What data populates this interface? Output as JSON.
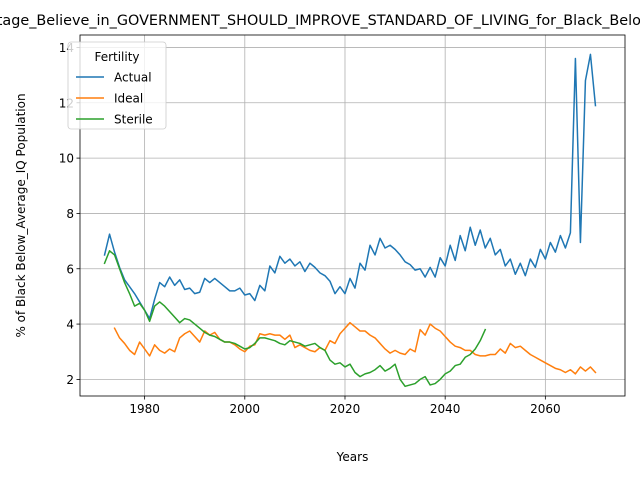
{
  "chart_data": {
    "type": "line",
    "title": "Percentage_Believe_in_GOVERNMENT_SHOULD_IMPROVE_STANDARD_OF_LIVING_for_Black_Below_Average_IQ",
    "xlabel": "Years",
    "ylabel": "% of Black Below_Average_IQ Population",
    "xlim": [
      1967.1,
      2075.9
    ],
    "ylim": [
      1.4,
      14.45
    ],
    "x_ticks": [
      1980,
      2000,
      2020,
      2040,
      2060
    ],
    "y_ticks": [
      2,
      4,
      6,
      8,
      10,
      12,
      14
    ],
    "x_tick_labels": [
      "1980",
      "2000",
      "2020",
      "2040",
      "2060"
    ],
    "y_tick_labels": [
      "2",
      "4",
      "6",
      "8",
      "10",
      "12",
      "14"
    ],
    "grid": true,
    "legend_title": "Fertility",
    "legend_position": "upper-left",
    "series": [
      {
        "name": "Actual",
        "color": "#1f77b4",
        "points": [
          [
            1972,
            6.5
          ],
          [
            1973,
            7.25
          ],
          [
            1974,
            6.6
          ],
          [
            1975,
            6.05
          ],
          [
            1976,
            5.6
          ],
          [
            1977,
            5.35
          ],
          [
            1978,
            5.1
          ],
          [
            1979,
            4.8
          ],
          [
            1980,
            4.5
          ],
          [
            1981,
            4.2
          ],
          [
            1982,
            4.9
          ],
          [
            1983,
            5.5
          ],
          [
            1984,
            5.35
          ],
          [
            1985,
            5.7
          ],
          [
            1986,
            5.4
          ],
          [
            1987,
            5.6
          ],
          [
            1988,
            5.25
          ],
          [
            1989,
            5.3
          ],
          [
            1990,
            5.1
          ],
          [
            1991,
            5.15
          ],
          [
            1992,
            5.65
          ],
          [
            1993,
            5.5
          ],
          [
            1994,
            5.65
          ],
          [
            1995,
            5.5
          ],
          [
            1996,
            5.35
          ],
          [
            1997,
            5.2
          ],
          [
            1998,
            5.2
          ],
          [
            1999,
            5.3
          ],
          [
            2000,
            5.05
          ],
          [
            2001,
            5.1
          ],
          [
            2002,
            4.85
          ],
          [
            2003,
            5.4
          ],
          [
            2004,
            5.2
          ],
          [
            2005,
            6.1
          ],
          [
            2006,
            5.85
          ],
          [
            2007,
            6.45
          ],
          [
            2008,
            6.2
          ],
          [
            2009,
            6.35
          ],
          [
            2010,
            6.1
          ],
          [
            2011,
            6.25
          ],
          [
            2012,
            5.9
          ],
          [
            2013,
            6.2
          ],
          [
            2014,
            6.05
          ],
          [
            2015,
            5.85
          ],
          [
            2016,
            5.75
          ],
          [
            2017,
            5.55
          ],
          [
            2018,
            5.1
          ],
          [
            2019,
            5.35
          ],
          [
            2020,
            5.1
          ],
          [
            2021,
            5.65
          ],
          [
            2022,
            5.3
          ],
          [
            2023,
            6.2
          ],
          [
            2024,
            5.95
          ],
          [
            2025,
            6.85
          ],
          [
            2026,
            6.5
          ],
          [
            2027,
            7.1
          ],
          [
            2028,
            6.75
          ],
          [
            2029,
            6.85
          ],
          [
            2030,
            6.7
          ],
          [
            2031,
            6.5
          ],
          [
            2032,
            6.25
          ],
          [
            2033,
            6.15
          ],
          [
            2034,
            5.95
          ],
          [
            2035,
            6.0
          ],
          [
            2036,
            5.7
          ],
          [
            2037,
            6.05
          ],
          [
            2038,
            5.7
          ],
          [
            2039,
            6.4
          ],
          [
            2040,
            6.1
          ],
          [
            2041,
            6.85
          ],
          [
            2042,
            6.3
          ],
          [
            2043,
            7.2
          ],
          [
            2044,
            6.65
          ],
          [
            2045,
            7.5
          ],
          [
            2046,
            6.85
          ],
          [
            2047,
            7.4
          ],
          [
            2048,
            6.75
          ],
          [
            2049,
            7.1
          ],
          [
            2050,
            6.5
          ],
          [
            2051,
            6.7
          ],
          [
            2052,
            6.1
          ],
          [
            2053,
            6.35
          ],
          [
            2054,
            5.8
          ],
          [
            2055,
            6.2
          ],
          [
            2056,
            5.75
          ],
          [
            2057,
            6.35
          ],
          [
            2058,
            6.05
          ],
          [
            2059,
            6.7
          ],
          [
            2060,
            6.35
          ],
          [
            2061,
            6.95
          ],
          [
            2062,
            6.6
          ],
          [
            2063,
            7.2
          ],
          [
            2064,
            6.75
          ],
          [
            2065,
            7.3
          ],
          [
            2066,
            13.6
          ],
          [
            2067,
            6.95
          ],
          [
            2068,
            12.8
          ],
          [
            2069,
            13.75
          ],
          [
            2070,
            11.9
          ]
        ]
      },
      {
        "name": "Ideal",
        "color": "#ff7f0e",
        "points": [
          [
            1974,
            3.85
          ],
          [
            1975,
            3.5
          ],
          [
            1976,
            3.3
          ],
          [
            1977,
            3.05
          ],
          [
            1978,
            2.9
          ],
          [
            1979,
            3.35
          ],
          [
            1980,
            3.1
          ],
          [
            1981,
            2.85
          ],
          [
            1982,
            3.25
          ],
          [
            1983,
            3.05
          ],
          [
            1984,
            2.95
          ],
          [
            1985,
            3.1
          ],
          [
            1986,
            3.0
          ],
          [
            1987,
            3.5
          ],
          [
            1988,
            3.65
          ],
          [
            1989,
            3.75
          ],
          [
            1990,
            3.55
          ],
          [
            1991,
            3.35
          ],
          [
            1992,
            3.75
          ],
          [
            1993,
            3.6
          ],
          [
            1994,
            3.7
          ],
          [
            1995,
            3.45
          ],
          [
            1996,
            3.35
          ],
          [
            1997,
            3.35
          ],
          [
            1998,
            3.25
          ],
          [
            1999,
            3.1
          ],
          [
            2000,
            3.0
          ],
          [
            2001,
            3.2
          ],
          [
            2002,
            3.25
          ],
          [
            2003,
            3.65
          ],
          [
            2004,
            3.6
          ],
          [
            2005,
            3.65
          ],
          [
            2006,
            3.6
          ],
          [
            2007,
            3.6
          ],
          [
            2008,
            3.45
          ],
          [
            2009,
            3.6
          ],
          [
            2010,
            3.15
          ],
          [
            2011,
            3.25
          ],
          [
            2012,
            3.15
          ],
          [
            2013,
            3.05
          ],
          [
            2014,
            3.0
          ],
          [
            2015,
            3.15
          ],
          [
            2016,
            3.05
          ],
          [
            2017,
            3.4
          ],
          [
            2018,
            3.3
          ],
          [
            2019,
            3.65
          ],
          [
            2020,
            3.85
          ],
          [
            2021,
            4.05
          ],
          [
            2022,
            3.9
          ],
          [
            2023,
            3.75
          ],
          [
            2024,
            3.75
          ],
          [
            2025,
            3.6
          ],
          [
            2026,
            3.5
          ],
          [
            2027,
            3.3
          ],
          [
            2028,
            3.1
          ],
          [
            2029,
            2.95
          ],
          [
            2030,
            3.05
          ],
          [
            2031,
            2.95
          ],
          [
            2032,
            2.9
          ],
          [
            2033,
            3.1
          ],
          [
            2034,
            3.0
          ],
          [
            2035,
            3.8
          ],
          [
            2036,
            3.6
          ],
          [
            2037,
            4.0
          ],
          [
            2038,
            3.85
          ],
          [
            2039,
            3.75
          ],
          [
            2040,
            3.55
          ],
          [
            2041,
            3.35
          ],
          [
            2042,
            3.2
          ],
          [
            2043,
            3.15
          ],
          [
            2044,
            3.05
          ],
          [
            2045,
            3.05
          ],
          [
            2046,
            2.9
          ],
          [
            2047,
            2.85
          ],
          [
            2048,
            2.85
          ],
          [
            2049,
            2.9
          ],
          [
            2050,
            2.9
          ],
          [
            2051,
            3.1
          ],
          [
            2052,
            2.95
          ],
          [
            2053,
            3.3
          ],
          [
            2054,
            3.15
          ],
          [
            2055,
            3.2
          ],
          [
            2056,
            3.05
          ],
          [
            2057,
            2.9
          ],
          [
            2058,
            2.8
          ],
          [
            2059,
            2.7
          ],
          [
            2060,
            2.6
          ],
          [
            2061,
            2.5
          ],
          [
            2062,
            2.4
          ],
          [
            2063,
            2.35
          ],
          [
            2064,
            2.25
          ],
          [
            2065,
            2.35
          ],
          [
            2066,
            2.2
          ],
          [
            2067,
            2.45
          ],
          [
            2068,
            2.3
          ],
          [
            2069,
            2.45
          ],
          [
            2070,
            2.25
          ]
        ]
      },
      {
        "name": "Sterile",
        "color": "#2ca02c",
        "points": [
          [
            1972,
            6.2
          ],
          [
            1973,
            6.65
          ],
          [
            1974,
            6.5
          ],
          [
            1975,
            6.0
          ],
          [
            1976,
            5.5
          ],
          [
            1977,
            5.1
          ],
          [
            1978,
            4.65
          ],
          [
            1979,
            4.75
          ],
          [
            1980,
            4.5
          ],
          [
            1981,
            4.1
          ],
          [
            1982,
            4.65
          ],
          [
            1983,
            4.8
          ],
          [
            1984,
            4.65
          ],
          [
            1985,
            4.45
          ],
          [
            1986,
            4.25
          ],
          [
            1987,
            4.05
          ],
          [
            1988,
            4.2
          ],
          [
            1989,
            4.15
          ],
          [
            1990,
            4.0
          ],
          [
            1991,
            3.85
          ],
          [
            1992,
            3.7
          ],
          [
            1993,
            3.6
          ],
          [
            1994,
            3.55
          ],
          [
            1995,
            3.45
          ],
          [
            1996,
            3.35
          ],
          [
            1997,
            3.35
          ],
          [
            1998,
            3.3
          ],
          [
            1999,
            3.2
          ],
          [
            2000,
            3.1
          ],
          [
            2001,
            3.15
          ],
          [
            2002,
            3.3
          ],
          [
            2003,
            3.5
          ],
          [
            2004,
            3.5
          ],
          [
            2005,
            3.45
          ],
          [
            2006,
            3.4
          ],
          [
            2007,
            3.3
          ],
          [
            2008,
            3.25
          ],
          [
            2009,
            3.4
          ],
          [
            2010,
            3.35
          ],
          [
            2011,
            3.3
          ],
          [
            2012,
            3.2
          ],
          [
            2013,
            3.25
          ],
          [
            2014,
            3.3
          ],
          [
            2015,
            3.15
          ],
          [
            2016,
            3.05
          ],
          [
            2017,
            2.7
          ],
          [
            2018,
            2.55
          ],
          [
            2019,
            2.6
          ],
          [
            2020,
            2.45
          ],
          [
            2021,
            2.55
          ],
          [
            2022,
            2.25
          ],
          [
            2023,
            2.1
          ],
          [
            2024,
            2.2
          ],
          [
            2025,
            2.25
          ],
          [
            2026,
            2.35
          ],
          [
            2027,
            2.5
          ],
          [
            2028,
            2.3
          ],
          [
            2029,
            2.4
          ],
          [
            2030,
            2.55
          ],
          [
            2031,
            2.0
          ],
          [
            2032,
            1.75
          ],
          [
            2033,
            1.8
          ],
          [
            2034,
            1.85
          ],
          [
            2035,
            2.0
          ],
          [
            2036,
            2.1
          ],
          [
            2037,
            1.8
          ],
          [
            2038,
            1.85
          ],
          [
            2039,
            2.0
          ],
          [
            2040,
            2.2
          ],
          [
            2041,
            2.3
          ],
          [
            2042,
            2.5
          ],
          [
            2043,
            2.55
          ],
          [
            2044,
            2.8
          ],
          [
            2045,
            2.9
          ],
          [
            2046,
            3.1
          ],
          [
            2047,
            3.4
          ],
          [
            2048,
            3.8
          ]
        ]
      }
    ]
  }
}
